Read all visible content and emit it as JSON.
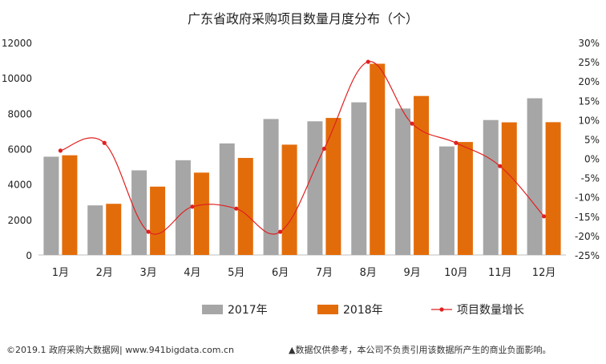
{
  "chart_data": {
    "type": "bar",
    "title": "广东省政府采购项目数量月度分布（个）",
    "categories": [
      "1月",
      "2月",
      "3月",
      "4月",
      "5月",
      "6月",
      "7月",
      "8月",
      "9月",
      "10月",
      "11月",
      "12月"
    ],
    "series": [
      {
        "name": "2017年",
        "type": "bar",
        "axis": "left",
        "color": "#a6a6a6",
        "values": [
          5550,
          2800,
          4780,
          5350,
          6300,
          7680,
          7550,
          8620,
          8270,
          6130,
          7620,
          8850
        ]
      },
      {
        "name": "2018年",
        "type": "bar",
        "axis": "left",
        "color": "#e36c0a",
        "values": [
          5630,
          2890,
          3860,
          4650,
          5480,
          6230,
          7740,
          10800,
          8980,
          6380,
          7490,
          7500
        ]
      },
      {
        "name": "项目数量增长",
        "type": "line",
        "axis": "right",
        "color": "#e02020",
        "unit": "%",
        "values": [
          2,
          4,
          -19,
          -12.5,
          -13,
          -19,
          2.5,
          25,
          9,
          4,
          -2,
          -15
        ]
      }
    ],
    "y_left": {
      "min": 0,
      "max": 12000,
      "ticks": [
        0,
        2000,
        4000,
        6000,
        8000,
        10000,
        12000
      ],
      "tick_labels": [
        "0",
        "2000",
        "4000",
        "6000",
        "8000",
        "10000",
        "12000"
      ]
    },
    "y_right": {
      "min": -25,
      "max": 30,
      "ticks": [
        30,
        25,
        20,
        15,
        10,
        5,
        0,
        -5,
        -10,
        -15,
        -20,
        -25
      ],
      "tick_labels": [
        "30%",
        "25%",
        "20%",
        "15%",
        "10%",
        "5%",
        "0%",
        "-5%",
        "-10%",
        "-15%",
        "-20%",
        "-25%"
      ]
    },
    "grid": false,
    "legend_position": "bottom"
  },
  "footer": {
    "left": "©2019.1 政府采购大数据网| www.941bigdata.com.cn",
    "right": "▲数据仅供参考，本公司不负责引用该数据所产生的商业负面影响。"
  },
  "colors": {
    "bar2017": "#a6a6a6",
    "bar2018": "#e36c0a",
    "growth": "#e02020",
    "axis": "#bfbfbf"
  }
}
